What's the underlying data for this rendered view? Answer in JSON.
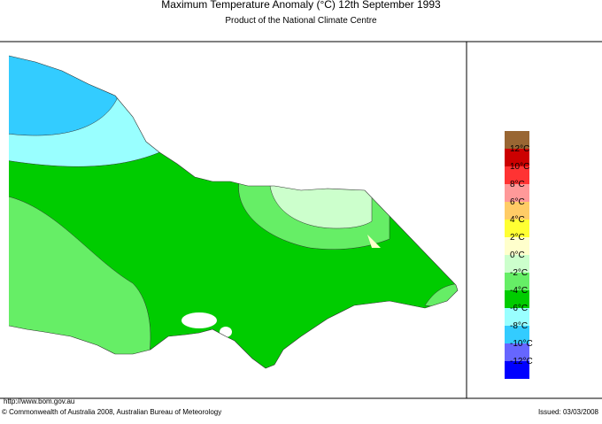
{
  "header": {
    "title": "Maximum Temperature Anomaly (°C)  12th September 1993",
    "subtitle": "Product of the National Climate Centre"
  },
  "legend": [
    {
      "color": "#996633"
    },
    {
      "label": "12°C",
      "color": "#cc0000"
    },
    {
      "label": "10°C",
      "color": "#ff3333"
    },
    {
      "label": "8°C",
      "color": "#ff9999"
    },
    {
      "label": "6°C",
      "color": "#ffcc66"
    },
    {
      "label": "4°C",
      "color": "#ffff33"
    },
    {
      "label": "2°C",
      "color": "#ffffcc"
    },
    {
      "label": "0°C",
      "color": "#ccffcc"
    },
    {
      "label": "-2°C",
      "color": "#66ee66"
    },
    {
      "label": "-4°C",
      "color": "#00cc00"
    },
    {
      "label": "-6°C",
      "color": "#99ffff"
    },
    {
      "label": "-8°C",
      "color": "#33ccff"
    },
    {
      "label": "-10°C",
      "color": "#6666ff"
    },
    {
      "label": "-12°C",
      "color": "#0000ff"
    }
  ],
  "footer": {
    "url": "http://www.bom.gov.au",
    "copyright": "© Commonwealth of Australia 2008, Australian Bureau of Meteorology",
    "issued": "Issued: 03/03/2008"
  }
}
